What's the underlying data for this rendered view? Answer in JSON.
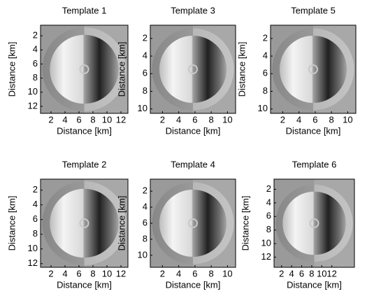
{
  "chart_data": [
    {
      "type": "image",
      "title": "Template 1",
      "xlabel": "Distance [km]",
      "ylabel": "Distance [km]",
      "xlim": [
        0.5,
        13
      ],
      "ylim": [
        0.5,
        13
      ],
      "xticks": [
        2,
        4,
        6,
        8,
        10,
        12
      ],
      "yticks": [
        2,
        4,
        6,
        8,
        10,
        12
      ]
    },
    {
      "type": "image",
      "title": "Template 3",
      "xlabel": "Distance [km]",
      "ylabel": "Distance [km]",
      "xlim": [
        0.5,
        11
      ],
      "ylim": [
        0.5,
        10.5
      ],
      "xticks": [
        2,
        4,
        6,
        8,
        10
      ],
      "yticks": [
        2,
        4,
        6,
        8,
        10
      ]
    },
    {
      "type": "image",
      "title": "Template 5",
      "xlabel": "Distance [km]",
      "ylabel": "Distance [km]",
      "xlim": [
        0.5,
        11
      ],
      "ylim": [
        0.5,
        10.5
      ],
      "xticks": [
        2,
        4,
        6,
        8,
        10
      ],
      "yticks": [
        2,
        4,
        6,
        8,
        10
      ]
    },
    {
      "type": "image",
      "title": "Template 2",
      "xlabel": "Distance [km]",
      "ylabel": "Distance [km]",
      "xlim": [
        0.5,
        13
      ],
      "ylim": [
        0.5,
        12.5
      ],
      "xticks": [
        2,
        4,
        6,
        8,
        10,
        12
      ],
      "yticks": [
        2,
        4,
        6,
        8,
        10,
        12
      ]
    },
    {
      "type": "image",
      "title": "Template 4",
      "xlabel": "Distance [km]",
      "ylabel": "Distance [km]",
      "xlim": [
        0.5,
        11
      ],
      "ylim": [
        0.5,
        11.5
      ],
      "xticks": [
        2,
        4,
        6,
        8,
        10
      ],
      "yticks": [
        2,
        4,
        6,
        8,
        10
      ]
    },
    {
      "type": "image",
      "title": "Template 6",
      "xlabel": "Distance [km]",
      "ylabel": "Distance [km]",
      "xlim": [
        0.5,
        16.5
      ],
      "ylim": [
        0.5,
        13.5
      ],
      "xticks": [
        2,
        4,
        6,
        8,
        10,
        12
      ],
      "yticks": [
        2,
        4,
        6,
        8,
        10,
        12
      ]
    }
  ]
}
